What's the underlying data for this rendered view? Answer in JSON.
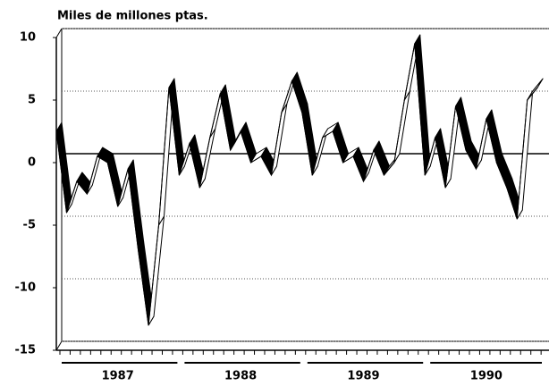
{
  "chart_data": {
    "type": "ribbon-line",
    "title": "Miles de millones ptas.",
    "categories": [
      null,
      null,
      null,
      null,
      null,
      null,
      null,
      null,
      null,
      null,
      null,
      null,
      null,
      null,
      null,
      null,
      null,
      null,
      null,
      null,
      null,
      null,
      null,
      null,
      null,
      null,
      null,
      null,
      null,
      null,
      null,
      null,
      null,
      null,
      null,
      null,
      null,
      null,
      null,
      null,
      null,
      null,
      null,
      null,
      null,
      null,
      null,
      null
    ],
    "groups": [
      "1987",
      "1988",
      "1989",
      "1990"
    ],
    "values": [
      2.5,
      -4,
      -1.5,
      -2.5,
      0.5,
      0,
      -3.5,
      -0.5,
      -7,
      -13,
      -5,
      6,
      -1,
      1.5,
      -2,
      2,
      5.5,
      1,
      2.5,
      0,
      0.5,
      -1,
      4,
      6.5,
      4,
      -1,
      2,
      2.5,
      0,
      0.5,
      -1.5,
      1,
      -1,
      0,
      5,
      9.5,
      -1,
      2,
      -2,
      4.5,
      1,
      -0.5,
      3.5,
      0,
      -2,
      -4.5,
      5,
      6
    ],
    "color": "#000000",
    "ylim": [
      -15,
      10
    ],
    "yticks": [
      -15,
      -10,
      -5,
      0,
      5,
      10
    ],
    "grid": true
  }
}
